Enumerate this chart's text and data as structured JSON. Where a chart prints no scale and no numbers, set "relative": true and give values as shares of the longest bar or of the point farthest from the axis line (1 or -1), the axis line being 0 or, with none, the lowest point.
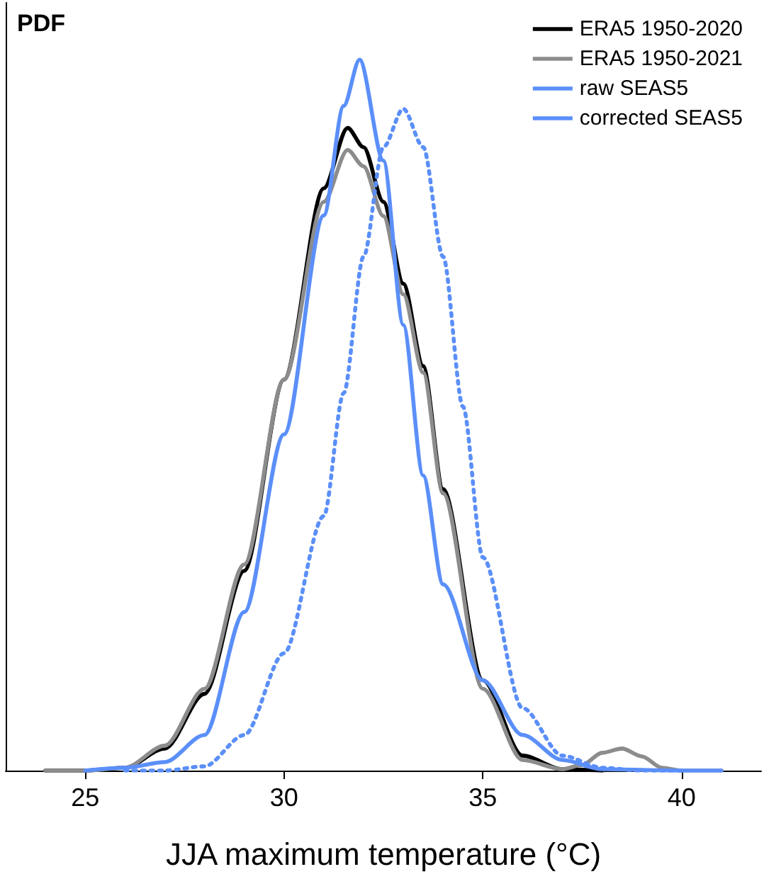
{
  "chart_data": {
    "type": "line",
    "ylabel": "PDF",
    "xlabel": "JJA maximum temperature (°C)",
    "relative": true,
    "xlim": [
      23,
      42
    ],
    "xticks": [
      25,
      30,
      35,
      40
    ],
    "grid": false,
    "legend": "top right",
    "marker": "none",
    "series": [
      {
        "name": "ERA5 1950-2020",
        "color": "#000000",
        "line_style": "solid",
        "x": [
          24,
          25,
          26,
          27,
          28,
          29,
          30,
          31,
          31.6,
          32,
          32.5,
          33,
          33.5,
          34,
          35,
          36,
          37,
          38
        ],
        "values": [
          0,
          0,
          0.004,
          0.031,
          0.108,
          0.281,
          0.55,
          0.819,
          0.904,
          0.877,
          0.8,
          0.685,
          0.569,
          0.396,
          0.127,
          0.021,
          0.002,
          0
        ]
      },
      {
        "name": "ERA5 1950-2021",
        "color": "#8c8c8c",
        "line_style": "solid",
        "x": [
          24,
          25,
          26,
          27,
          28,
          29,
          30,
          31,
          31.6,
          32,
          32.5,
          33,
          33.5,
          34,
          35,
          36,
          37,
          37.5,
          38,
          38.5,
          39,
          39.5,
          40,
          41
        ],
        "values": [
          0,
          0,
          0.004,
          0.035,
          0.115,
          0.29,
          0.55,
          0.8,
          0.873,
          0.85,
          0.78,
          0.67,
          0.56,
          0.39,
          0.115,
          0.015,
          0.002,
          0.008,
          0.025,
          0.031,
          0.02,
          0.004,
          0,
          0
        ]
      },
      {
        "name": "raw SEAS5",
        "color": "#5b8ff9",
        "line_style": "dotted",
        "x": [
          26,
          27,
          28,
          29,
          30,
          31,
          31.5,
          32,
          32.5,
          33,
          33.5,
          34,
          34.5,
          35,
          36,
          37,
          38,
          39,
          40
        ],
        "values": [
          0,
          0,
          0.006,
          0.05,
          0.165,
          0.358,
          0.531,
          0.723,
          0.877,
          0.931,
          0.877,
          0.723,
          0.512,
          0.3,
          0.088,
          0.021,
          0.004,
          0,
          0
        ]
      },
      {
        "name": "corrected SEAS5",
        "color": "#5b8ff9",
        "line_style": "solid",
        "x": [
          25,
          26,
          27,
          28,
          29,
          30,
          31,
          31.5,
          31.9,
          32.5,
          33,
          33.5,
          34,
          35,
          36,
          37,
          38,
          40,
          41
        ],
        "values": [
          0,
          0.004,
          0.012,
          0.05,
          0.223,
          0.473,
          0.781,
          0.935,
          1,
          0.858,
          0.627,
          0.415,
          0.262,
          0.127,
          0.05,
          0.015,
          0.002,
          0,
          0
        ]
      }
    ]
  }
}
